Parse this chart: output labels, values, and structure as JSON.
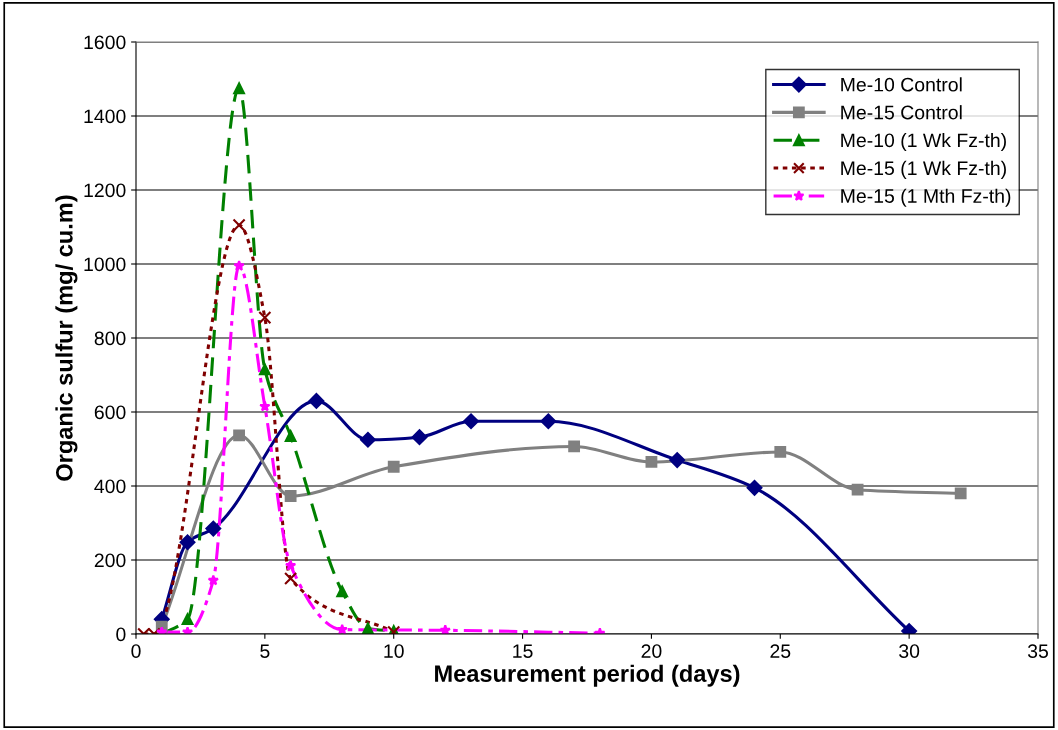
{
  "chart_data": {
    "type": "line",
    "xlabel": "Measurement period (days)",
    "ylabel": "Organic sulfur (mg/ cu.m)",
    "xlim": [
      0,
      35
    ],
    "xticks": [
      0,
      5,
      10,
      15,
      20,
      25,
      30,
      35
    ],
    "ylim": [
      0,
      1600
    ],
    "yticks": [
      0,
      200,
      400,
      600,
      800,
      1000,
      1200,
      1400,
      1600
    ],
    "grid": "y",
    "legend": "top right",
    "series": [
      {
        "name": "Me-10 Control",
        "color": "#000080",
        "marker": "diamond",
        "line_style": "solid",
        "x": [
          1,
          2,
          3,
          7,
          9,
          11,
          13,
          16,
          21,
          24,
          30
        ],
        "values": [
          40,
          248,
          285,
          630,
          525,
          532,
          575,
          575,
          470,
          395,
          8
        ]
      },
      {
        "name": "Me-15 Control",
        "color": "#808080",
        "marker": "square",
        "line_style": "solid",
        "x": [
          1,
          4,
          6,
          10,
          17,
          20,
          25,
          28,
          32
        ],
        "values": [
          20,
          537,
          373,
          452,
          507,
          465,
          492,
          390,
          380
        ]
      },
      {
        "name": "Me-10 (1 Wk Fz-th)",
        "color": "#008000",
        "marker": "triangle",
        "line_style": "dashed",
        "x": [
          1,
          2,
          4,
          5,
          6,
          8,
          9,
          10
        ],
        "values": [
          0,
          40,
          1475,
          715,
          535,
          115,
          15,
          8
        ]
      },
      {
        "name": "Me-15 (1 Wk Fz-th)",
        "color": "#800000",
        "marker": "cross",
        "line_style": "dotted",
        "x": [
          0.3,
          0.7,
          4,
          5,
          6,
          10
        ],
        "values": [
          0,
          0,
          1105,
          855,
          150,
          5
        ]
      },
      {
        "name": "Me-15 (1 Mth Fz-th)",
        "color": "#ff00ff",
        "marker": "star",
        "line_style": "dashdot",
        "x": [
          1,
          2,
          3,
          4,
          5,
          6,
          8,
          12,
          18
        ],
        "values": [
          5,
          5,
          145,
          995,
          615,
          185,
          12,
          10,
          2
        ]
      }
    ]
  }
}
